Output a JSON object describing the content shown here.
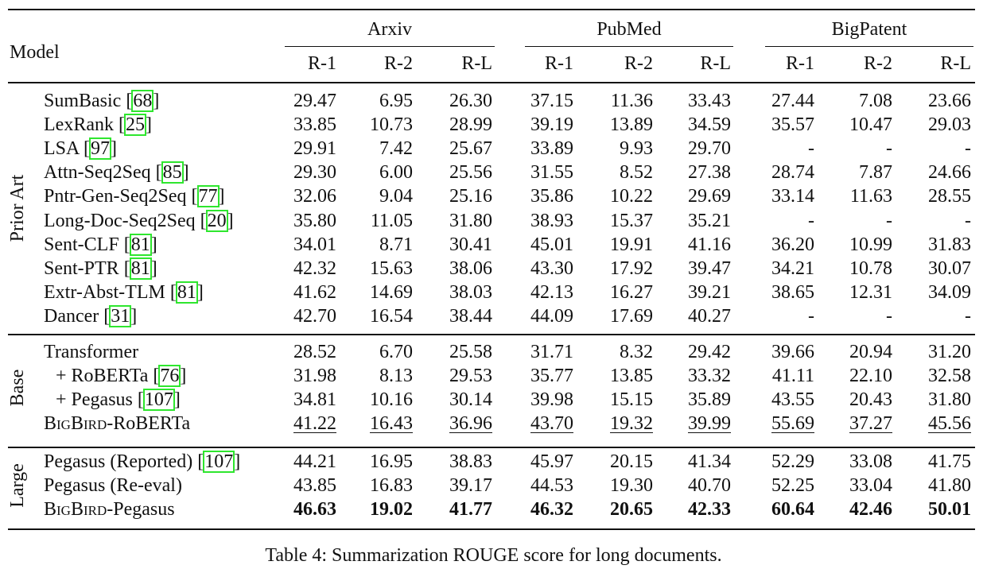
{
  "table": {
    "header": {
      "model": "Model",
      "groups": [
        {
          "name": "Arxiv",
          "columns": [
            "R-1",
            "R-2",
            "R-L"
          ]
        },
        {
          "name": "PubMed",
          "columns": [
            "R-1",
            "R-2",
            "R-L"
          ]
        },
        {
          "name": "BigPatent",
          "columns": [
            "R-1",
            "R-2",
            "R-L"
          ]
        }
      ]
    },
    "sections": [
      {
        "label": "Prior Art",
        "rows": [
          {
            "model": "SumBasic [68]",
            "values": [
              "29.47",
              "6.95",
              "26.30",
              "37.15",
              "11.36",
              "33.43",
              "27.44",
              "7.08",
              "23.66"
            ]
          },
          {
            "model": "LexRank [25]",
            "values": [
              "33.85",
              "10.73",
              "28.99",
              "39.19",
              "13.89",
              "34.59",
              "35.57",
              "10.47",
              "29.03"
            ]
          },
          {
            "model": "LSA [97]",
            "values": [
              "29.91",
              "7.42",
              "25.67",
              "33.89",
              "9.93",
              "29.70",
              "-",
              "-",
              "-"
            ]
          },
          {
            "model": "Attn-Seq2Seq [85]",
            "values": [
              "29.30",
              "6.00",
              "25.56",
              "31.55",
              "8.52",
              "27.38",
              "28.74",
              "7.87",
              "24.66"
            ]
          },
          {
            "model": "Pntr-Gen-Seq2Seq [77]",
            "values": [
              "32.06",
              "9.04",
              "25.16",
              "35.86",
              "10.22",
              "29.69",
              "33.14",
              "11.63",
              "28.55"
            ]
          },
          {
            "model": "Long-Doc-Seq2Seq [20]",
            "values": [
              "35.80",
              "11.05",
              "31.80",
              "38.93",
              "15.37",
              "35.21",
              "-",
              "-",
              "-"
            ]
          },
          {
            "model": "Sent-CLF [81]",
            "values": [
              "34.01",
              "8.71",
              "30.41",
              "45.01",
              "19.91",
              "41.16",
              "36.20",
              "10.99",
              "31.83"
            ]
          },
          {
            "model": "Sent-PTR [81]",
            "values": [
              "42.32",
              "15.63",
              "38.06",
              "43.30",
              "17.92",
              "39.47",
              "34.21",
              "10.78",
              "30.07"
            ]
          },
          {
            "model": "Extr-Abst-TLM [81]",
            "values": [
              "41.62",
              "14.69",
              "38.03",
              "42.13",
              "16.27",
              "39.21",
              "38.65",
              "12.31",
              "34.09"
            ]
          },
          {
            "model": "Dancer [31]",
            "values": [
              "42.70",
              "16.54",
              "38.44",
              "44.09",
              "17.69",
              "40.27",
              "-",
              "-",
              "-"
            ]
          }
        ]
      },
      {
        "label": "Base",
        "rows": [
          {
            "model": "Transformer",
            "values": [
              "28.52",
              "6.70",
              "25.58",
              "31.71",
              "8.32",
              "29.42",
              "39.66",
              "20.94",
              "31.20"
            ]
          },
          {
            "model": "+ RoBERTa [76]",
            "values": [
              "31.98",
              "8.13",
              "29.53",
              "35.77",
              "13.85",
              "33.32",
              "41.11",
              "22.10",
              "32.58"
            ]
          },
          {
            "model": "+ Pegasus [107]",
            "values": [
              "34.81",
              "10.16",
              "30.14",
              "39.98",
              "15.15",
              "35.89",
              "43.55",
              "20.43",
              "31.80"
            ]
          },
          {
            "model": "BigBird-RoBERTa",
            "emphasis": "underline",
            "values": [
              "41.22",
              "16.43",
              "36.96",
              "43.70",
              "19.32",
              "39.99",
              "55.69",
              "37.27",
              "45.56"
            ]
          }
        ]
      },
      {
        "label": "Large",
        "rows": [
          {
            "model": "Pegasus (Reported) [107]",
            "values": [
              "44.21",
              "16.95",
              "38.83",
              "45.97",
              "20.15",
              "41.34",
              "52.29",
              "33.08",
              "41.75"
            ]
          },
          {
            "model": "Pegasus (Re-eval)",
            "values": [
              "43.85",
              "16.83",
              "39.17",
              "44.53",
              "19.30",
              "40.70",
              "52.25",
              "33.04",
              "41.80"
            ]
          },
          {
            "model": "BigBird-Pegasus",
            "emphasis": "bold",
            "values": [
              "46.63",
              "19.02",
              "41.77",
              "46.32",
              "20.65",
              "42.33",
              "60.64",
              "42.46",
              "50.01"
            ]
          }
        ]
      }
    ]
  },
  "caption": "Table 4: Summarization ROUGE score for long documents."
}
